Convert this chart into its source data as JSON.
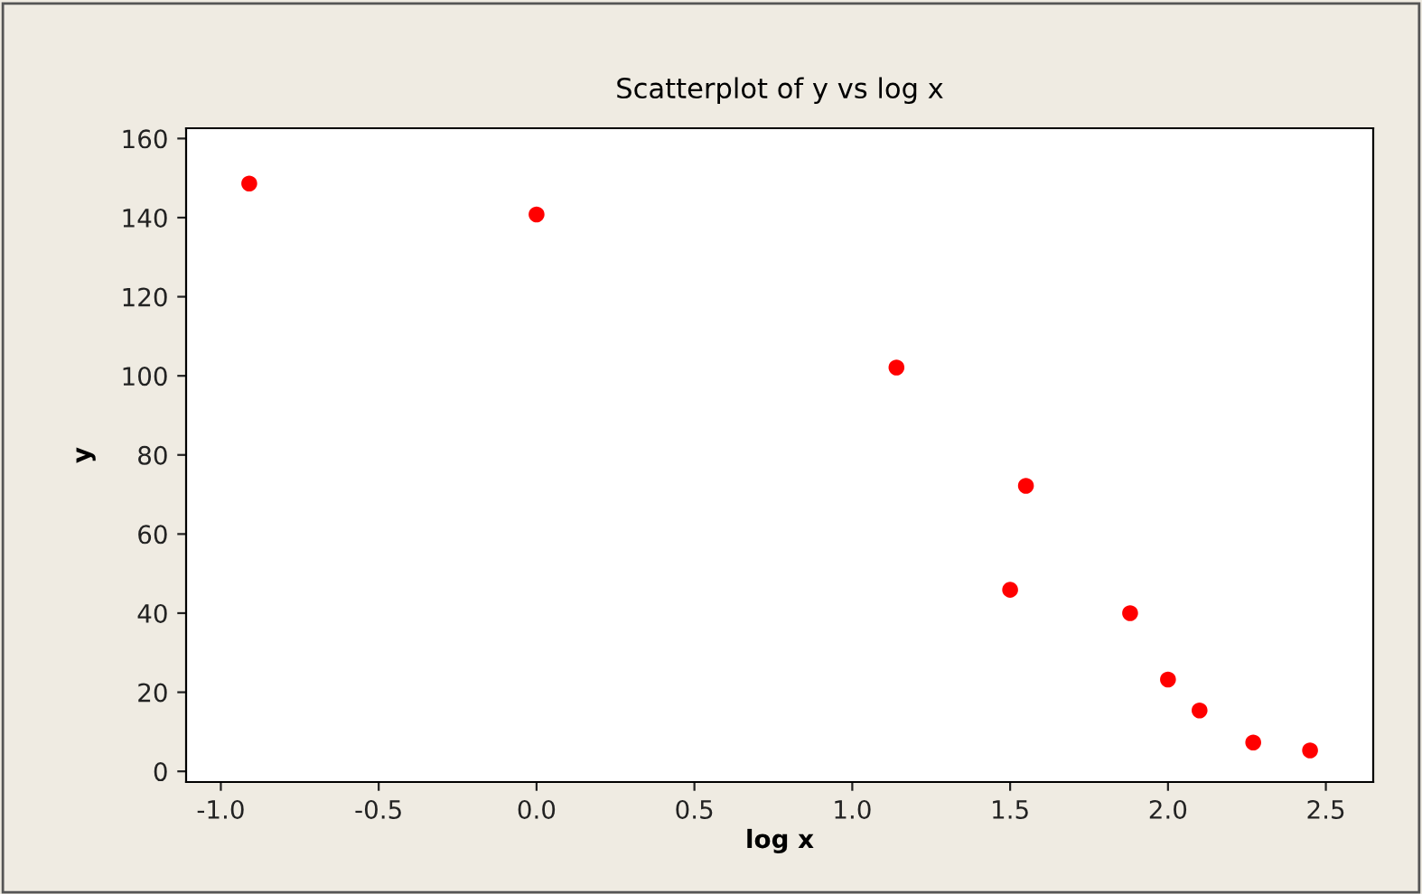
{
  "chart_data": {
    "type": "scatter",
    "title": "Scatterplot of y vs log x",
    "xlabel": "log x",
    "ylabel": "y",
    "x": [
      -0.91,
      0.0,
      1.14,
      1.55,
      1.5,
      1.88,
      2.0,
      2.1,
      2.27,
      2.45
    ],
    "series": [
      {
        "color": "#ff0000",
        "values": [
          148.6,
          140.8,
          102.1,
          72.2,
          45.9,
          40.0,
          23.2,
          15.4,
          7.3,
          5.3
        ]
      }
    ],
    "xlim": [
      -1.11,
      2.65
    ],
    "ylim": [
      -2.7,
      162.6
    ],
    "xticks": [
      {
        "value": -1.0,
        "label": "-1.0"
      },
      {
        "value": -0.5,
        "label": "-0.5"
      },
      {
        "value": 0.0,
        "label": "0.0"
      },
      {
        "value": 0.5,
        "label": "0.5"
      },
      {
        "value": 1.0,
        "label": "1.0"
      },
      {
        "value": 1.5,
        "label": "1.5"
      },
      {
        "value": 2.0,
        "label": "2.0"
      },
      {
        "value": 2.5,
        "label": "2.5"
      }
    ],
    "yticks": [
      0,
      20,
      40,
      60,
      80,
      100,
      120,
      140,
      160
    ],
    "marker": "circle",
    "grid": false,
    "legend": false
  }
}
